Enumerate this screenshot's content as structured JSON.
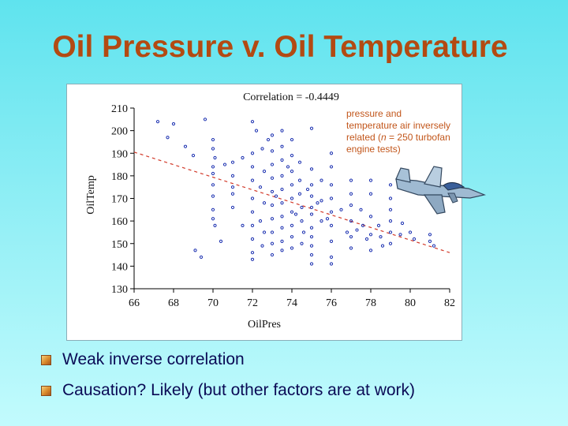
{
  "slide": {
    "title": "Oil Pressure v. Oil Temperature",
    "bullets": [
      "Weak inverse correlation",
      "Causation?  Likely (but other factors are at work)"
    ]
  },
  "colors": {
    "title": "#b34a12",
    "bullet_text": "#0a0a55",
    "annotation": "#c2561b",
    "points": "#1a2fb0",
    "regression_line": "#d23a2a"
  },
  "icons": {
    "bullet": "gold-square-bullet-icon",
    "illustration": "jet-airplane-clipart-icon"
  },
  "chart_data": {
    "type": "scatter",
    "title": "Correlation = -0.4449",
    "xlabel": "OilPres",
    "ylabel": "OilTemp",
    "xlim": [
      66,
      82
    ],
    "ylim": [
      130,
      210
    ],
    "xticks": [
      66,
      68,
      70,
      72,
      74,
      76,
      78,
      80,
      82
    ],
    "yticks": [
      130,
      140,
      150,
      160,
      170,
      180,
      190,
      200,
      210
    ],
    "annotation": [
      "pressure and",
      "temperature air inversely",
      "related (n = 250 turbofan",
      "engine tests)"
    ],
    "regression_line": {
      "x": [
        66,
        82
      ],
      "y": [
        190.5,
        146.0
      ]
    },
    "points": [
      [
        67.2,
        204
      ],
      [
        68.0,
        203
      ],
      [
        69.6,
        205
      ],
      [
        69.1,
        147
      ],
      [
        69.4,
        144
      ],
      [
        70.4,
        151
      ],
      [
        67.7,
        197
      ],
      [
        69.0,
        189
      ],
      [
        68.6,
        193
      ],
      [
        70.0,
        196
      ],
      [
        70.0,
        192
      ],
      [
        70.1,
        188
      ],
      [
        70.0,
        184
      ],
      [
        70.0,
        181
      ],
      [
        70.0,
        176
      ],
      [
        70.0,
        171
      ],
      [
        70.0,
        165
      ],
      [
        70.0,
        161
      ],
      [
        70.1,
        158
      ],
      [
        71.0,
        175
      ],
      [
        71.0,
        180
      ],
      [
        71.0,
        186
      ],
      [
        71.0,
        172
      ],
      [
        71.0,
        166
      ],
      [
        71.5,
        188
      ],
      [
        72.0,
        204
      ],
      [
        72.0,
        190
      ],
      [
        72.0,
        184
      ],
      [
        72.0,
        178
      ],
      [
        72.0,
        170
      ],
      [
        72.0,
        164
      ],
      [
        72.0,
        158
      ],
      [
        72.0,
        152
      ],
      [
        72.0,
        146
      ],
      [
        72.0,
        143
      ],
      [
        72.5,
        192
      ],
      [
        72.6,
        182
      ],
      [
        72.4,
        175
      ],
      [
        72.6,
        168
      ],
      [
        72.4,
        160
      ],
      [
        72.6,
        155
      ],
      [
        72.5,
        149
      ],
      [
        73.0,
        198
      ],
      [
        73.0,
        191
      ],
      [
        73.0,
        185
      ],
      [
        73.0,
        179
      ],
      [
        73.0,
        173
      ],
      [
        73.0,
        167
      ],
      [
        73.0,
        161
      ],
      [
        73.0,
        155
      ],
      [
        73.0,
        150
      ],
      [
        73.0,
        145
      ],
      [
        73.5,
        200
      ],
      [
        73.5,
        193
      ],
      [
        73.5,
        187
      ],
      [
        73.5,
        180
      ],
      [
        73.5,
        174
      ],
      [
        73.5,
        168
      ],
      [
        73.5,
        162
      ],
      [
        73.5,
        157
      ],
      [
        73.5,
        151
      ],
      [
        73.5,
        147
      ],
      [
        74.0,
        196
      ],
      [
        74.0,
        189
      ],
      [
        74.0,
        182
      ],
      [
        74.0,
        176
      ],
      [
        74.0,
        170
      ],
      [
        74.0,
        164
      ],
      [
        74.0,
        158
      ],
      [
        74.0,
        153
      ],
      [
        74.0,
        148
      ],
      [
        74.4,
        186
      ],
      [
        74.4,
        178
      ],
      [
        74.4,
        172
      ],
      [
        74.5,
        166
      ],
      [
        74.5,
        160
      ],
      [
        74.6,
        155
      ],
      [
        74.5,
        150
      ],
      [
        75.0,
        201
      ],
      [
        75.0,
        183
      ],
      [
        75.0,
        176
      ],
      [
        75.0,
        171
      ],
      [
        75.0,
        166
      ],
      [
        75.0,
        163
      ],
      [
        75.0,
        157
      ],
      [
        75.0,
        153
      ],
      [
        75.0,
        149
      ],
      [
        75.0,
        145
      ],
      [
        75.0,
        141
      ],
      [
        75.5,
        178
      ],
      [
        75.5,
        169
      ],
      [
        75.5,
        160
      ],
      [
        76.0,
        190
      ],
      [
        76.0,
        184
      ],
      [
        76.0,
        176
      ],
      [
        76.0,
        170
      ],
      [
        76.0,
        164
      ],
      [
        76.0,
        158
      ],
      [
        76.0,
        151
      ],
      [
        76.0,
        144
      ],
      [
        76.0,
        141
      ],
      [
        77.0,
        178
      ],
      [
        77.0,
        172
      ],
      [
        77.0,
        167
      ],
      [
        77.0,
        160
      ],
      [
        77.0,
        153
      ],
      [
        77.0,
        148
      ],
      [
        77.5,
        165
      ],
      [
        77.6,
        158
      ],
      [
        77.8,
        152
      ],
      [
        78.0,
        178
      ],
      [
        78.0,
        172
      ],
      [
        78.0,
        162
      ],
      [
        78.0,
        154
      ],
      [
        78.0,
        147
      ],
      [
        78.4,
        158
      ],
      [
        78.5,
        153
      ],
      [
        78.6,
        149
      ],
      [
        79.0,
        176
      ],
      [
        79.0,
        170
      ],
      [
        79.0,
        165
      ],
      [
        79.0,
        160
      ],
      [
        79.0,
        155
      ],
      [
        79.0,
        150
      ],
      [
        79.5,
        154
      ],
      [
        79.6,
        159
      ],
      [
        80.0,
        155
      ],
      [
        80.2,
        152
      ],
      [
        81.0,
        154
      ],
      [
        81.0,
        151
      ],
      [
        81.2,
        149
      ],
      [
        72.2,
        200
      ],
      [
        72.8,
        196
      ],
      [
        73.8,
        184
      ],
      [
        74.8,
        174
      ],
      [
        75.3,
        168
      ],
      [
        76.5,
        165
      ],
      [
        77.3,
        156
      ],
      [
        71.5,
        158
      ],
      [
        70.6,
        185
      ],
      [
        73.2,
        171
      ],
      [
        74.2,
        163
      ],
      [
        75.8,
        161
      ],
      [
        76.8,
        155
      ]
    ],
    "grid": false,
    "legend": "none"
  }
}
